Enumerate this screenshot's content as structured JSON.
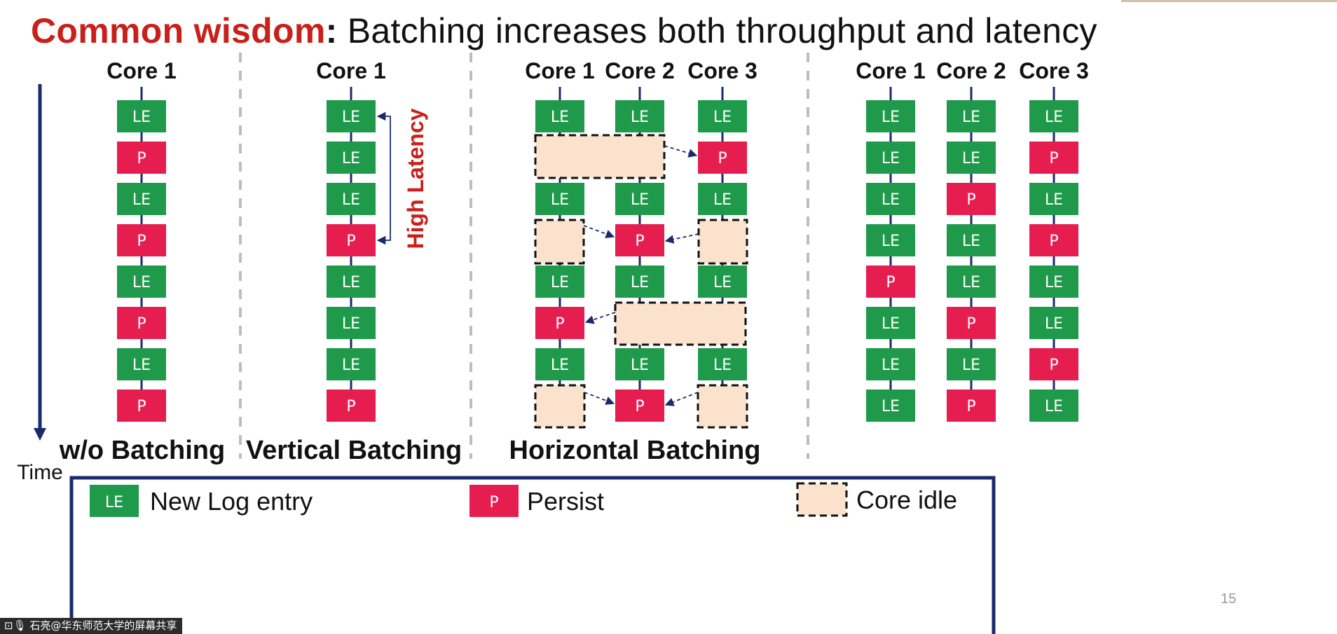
{
  "title": {
    "highlight": "Common wisdom",
    "colon": ":",
    "rest": " Batching increases both throughput and latency"
  },
  "time_axis": {
    "label": "Time"
  },
  "labels": {
    "le": "LE",
    "p": "P"
  },
  "panels": [
    {
      "caption": "w/o Batching",
      "cores": [
        {
          "header": "Core 1",
          "boxes": [
            "LE",
            "P",
            "LE",
            "P",
            "LE",
            "P",
            "LE",
            "P"
          ]
        }
      ]
    },
    {
      "caption": "Vertical Batching",
      "annotation": "High Latency",
      "cores": [
        {
          "header": "Core 1",
          "boxes": [
            "LE",
            "LE",
            "LE",
            "P",
            "LE",
            "LE",
            "LE",
            "P"
          ]
        }
      ]
    },
    {
      "caption": "Horizontal Batching",
      "cores": [
        {
          "header": "Core 1",
          "boxes": [
            "LE",
            "idle",
            "LE",
            "idle",
            "LE",
            "P",
            "LE",
            "idle"
          ]
        },
        {
          "header": "Core 2",
          "boxes": [
            "LE",
            "idle",
            "LE",
            "P",
            "LE",
            "idle",
            "LE",
            "P"
          ]
        },
        {
          "header": "Core 3",
          "boxes": [
            "LE",
            "P",
            "LE",
            "idle",
            "LE",
            "idle",
            "LE",
            "idle"
          ]
        }
      ]
    },
    {
      "caption": "",
      "cores": [
        {
          "header": "Core 1",
          "boxes": [
            "LE",
            "LE",
            "LE",
            "LE",
            "P",
            "LE",
            "LE",
            "LE"
          ]
        },
        {
          "header": "Core 2",
          "boxes": [
            "LE",
            "LE",
            "P",
            "LE",
            "LE",
            "P",
            "LE",
            "P"
          ]
        },
        {
          "header": "Core 3",
          "boxes": [
            "LE",
            "P",
            "LE",
            "P",
            "LE",
            "LE",
            "P",
            "LE"
          ]
        }
      ]
    }
  ],
  "legend": {
    "le_text": "New Log entry",
    "p_text": "Persist",
    "idle_text": "Core idle"
  },
  "slide_number": "15",
  "overlay_text": "石亮@华东师范大学的屏幕共享",
  "colors": {
    "le": "#1f9a4b",
    "p": "#e61e50",
    "idle_fill": "#fbe2cd",
    "line": "#1a2b6b",
    "accent": "#c8201a",
    "divider": "#bdbdbd"
  }
}
